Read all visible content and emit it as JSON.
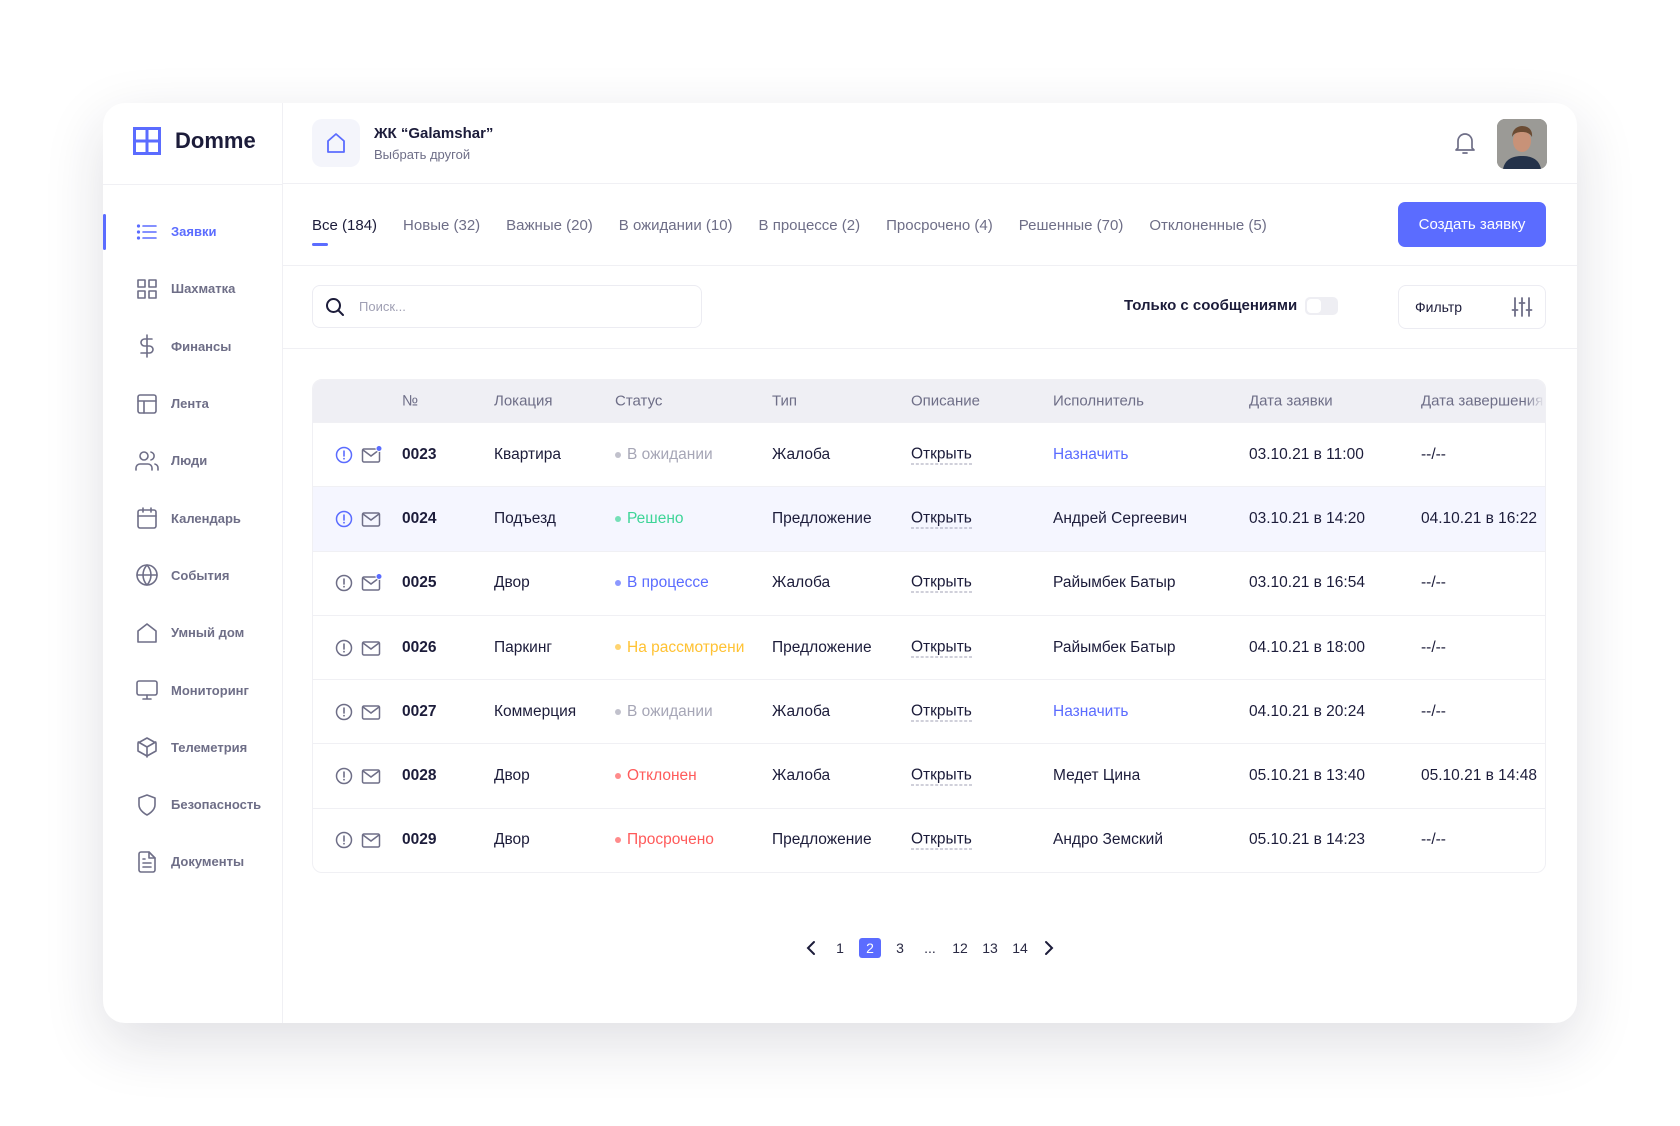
{
  "app": {
    "name": "Domme",
    "accent": "#5b6cff"
  },
  "sidebar": {
    "items": [
      {
        "label": "Заявки",
        "icon": "list-icon",
        "active": true
      },
      {
        "label": "Шахматка",
        "icon": "grid-icon"
      },
      {
        "label": "Финансы",
        "icon": "dollar-icon"
      },
      {
        "label": "Лента",
        "icon": "layout-icon"
      },
      {
        "label": "Люди",
        "icon": "users-icon"
      },
      {
        "label": "Календарь",
        "icon": "calendar-icon"
      },
      {
        "label": "События",
        "icon": "globe-icon"
      },
      {
        "label": "Умный дом",
        "icon": "home-icon"
      },
      {
        "label": "Мониторинг",
        "icon": "monitor-icon"
      },
      {
        "label": "Телеметрия",
        "icon": "cube-icon"
      },
      {
        "label": "Безопасность",
        "icon": "shield-icon"
      },
      {
        "label": "Документы",
        "icon": "document-icon"
      }
    ]
  },
  "header": {
    "complex_name": "ЖК “Galamshar”",
    "complex_switch": "Выбрать другой"
  },
  "tabs": [
    {
      "label": "Все (184)",
      "active": true
    },
    {
      "label": "Новые (32)"
    },
    {
      "label": "Важные (20)"
    },
    {
      "label": "В ожидании (10)"
    },
    {
      "label": "В процессе (2)"
    },
    {
      "label": "Просрочено (4)"
    },
    {
      "label": "Решенные (70)"
    },
    {
      "label": "Отклоненные (5)"
    }
  ],
  "create_button": "Создать заявку",
  "search": {
    "placeholder": "Поиск...",
    "value": ""
  },
  "only_messages": {
    "label": "Только с сообщениями",
    "on": false
  },
  "filter_label": "Фильтр",
  "table": {
    "columns": [
      "№",
      "Локация",
      "Статус",
      "Тип",
      "Описание",
      "Исполнитель",
      "Дата заявки",
      "Дата завершения"
    ],
    "rows": [
      {
        "important": true,
        "unread": true,
        "num": "0023",
        "location": "Квартира",
        "status": "В ожидании",
        "status_color": "#a6a6b6",
        "type": "Жалоба",
        "desc": "Открыть",
        "executor": "Назначить",
        "assign": true,
        "date": "03.10.21 в 11:00",
        "done": "--/--"
      },
      {
        "important": true,
        "unread": false,
        "num": "0024",
        "location": "Подъезд",
        "status": "Решено",
        "status_color": "#3ed598",
        "type": "Предложение",
        "desc": "Открыть",
        "executor": "Андрей Сергеевич",
        "date": "03.10.21 в 14:20",
        "done": "04.10.21 в 16:22",
        "highlight": true
      },
      {
        "important": false,
        "unread": true,
        "num": "0025",
        "location": "Двор",
        "status": "В процессе",
        "status_color": "#5b6cff",
        "type": "Жалоба",
        "desc": "Открыть",
        "executor": "Райымбек Батыр",
        "date": "03.10.21 в 16:54",
        "done": "--/--"
      },
      {
        "important": false,
        "unread": false,
        "num": "0026",
        "location": "Паркинг",
        "status": "На рассмотрени",
        "status_color": "#ffc233",
        "type": "Предложение",
        "desc": "Открыть",
        "executor": "Райымбек Батыр",
        "date": "04.10.21 в 18:00",
        "done": "--/--"
      },
      {
        "important": false,
        "unread": false,
        "num": "0027",
        "location": "Коммерция",
        "status": "В ожидании",
        "status_color": "#a6a6b6",
        "type": "Жалоба",
        "desc": "Открыть",
        "executor": "Назначить",
        "assign": true,
        "date": "04.10.21 в 20:24",
        "done": "--/--"
      },
      {
        "important": false,
        "unread": false,
        "num": "0028",
        "location": "Двор",
        "status": "Отклонен",
        "status_color": "#ff5a5a",
        "type": "Жалоба",
        "desc": "Открыть",
        "executor": "Медет Цина",
        "date": "05.10.21 в 13:40",
        "done": "05.10.21 в 14:48"
      },
      {
        "important": false,
        "unread": false,
        "num": "0029",
        "location": "Двор",
        "status": "Просрочено",
        "status_color": "#ff5a5a",
        "type": "Предложение",
        "desc": "Открыть",
        "executor": "Андро Земский",
        "date": "05.10.21 в 14:23",
        "done": "--/--"
      }
    ]
  },
  "pagination": {
    "pages": [
      "1",
      "2",
      "3",
      "...",
      "12",
      "13",
      "14"
    ],
    "current": "2"
  }
}
